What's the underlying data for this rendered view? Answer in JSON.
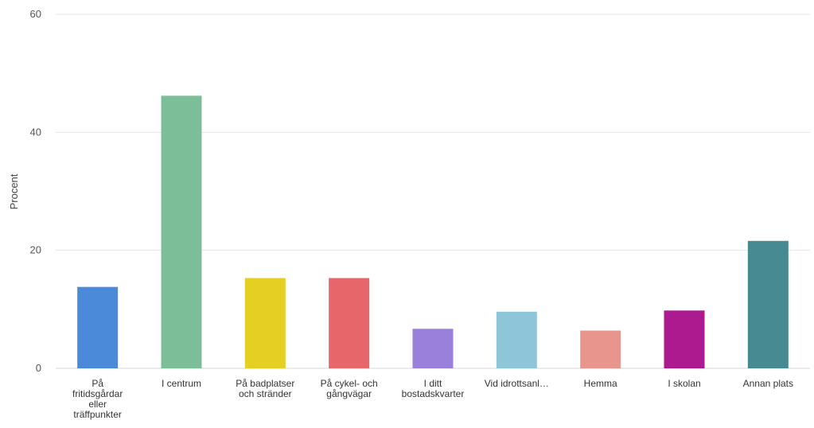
{
  "chart_data": {
    "type": "bar",
    "ylabel": "Procent",
    "ylim": [
      0,
      60
    ],
    "yticks": [
      0,
      20,
      40,
      60
    ],
    "grid": true,
    "categories": [
      "På fritidsgårdar eller träffpunkter",
      "I centrum",
      "På badplatser och stränder",
      "På cykel- och gångvägar",
      "I ditt bostadskvarter",
      "Vid idrottsanl…",
      "Hemma",
      "I skolan",
      "Annan plats"
    ],
    "category_label_lines": [
      [
        "På",
        "fritidsgårdar",
        "eller",
        "träffpunkter"
      ],
      [
        "I centrum"
      ],
      [
        "På badplatser",
        "och stränder"
      ],
      [
        "På cykel- och",
        "gångvägar"
      ],
      [
        "I ditt",
        "bostadskvarter"
      ],
      [
        "Vid idrottsanl…"
      ],
      [
        "Hemma"
      ],
      [
        "I skolan"
      ],
      [
        "Annan plats"
      ]
    ],
    "values": [
      13.8,
      46.2,
      15.3,
      15.3,
      6.7,
      9.6,
      6.4,
      9.8,
      21.6
    ],
    "colors": [
      "#4a8ad9",
      "#7bbe98",
      "#e5cf22",
      "#e7666a",
      "#9a7fdb",
      "#8fc5d9",
      "#e8958d",
      "#ad1a8f",
      "#488a92"
    ]
  }
}
